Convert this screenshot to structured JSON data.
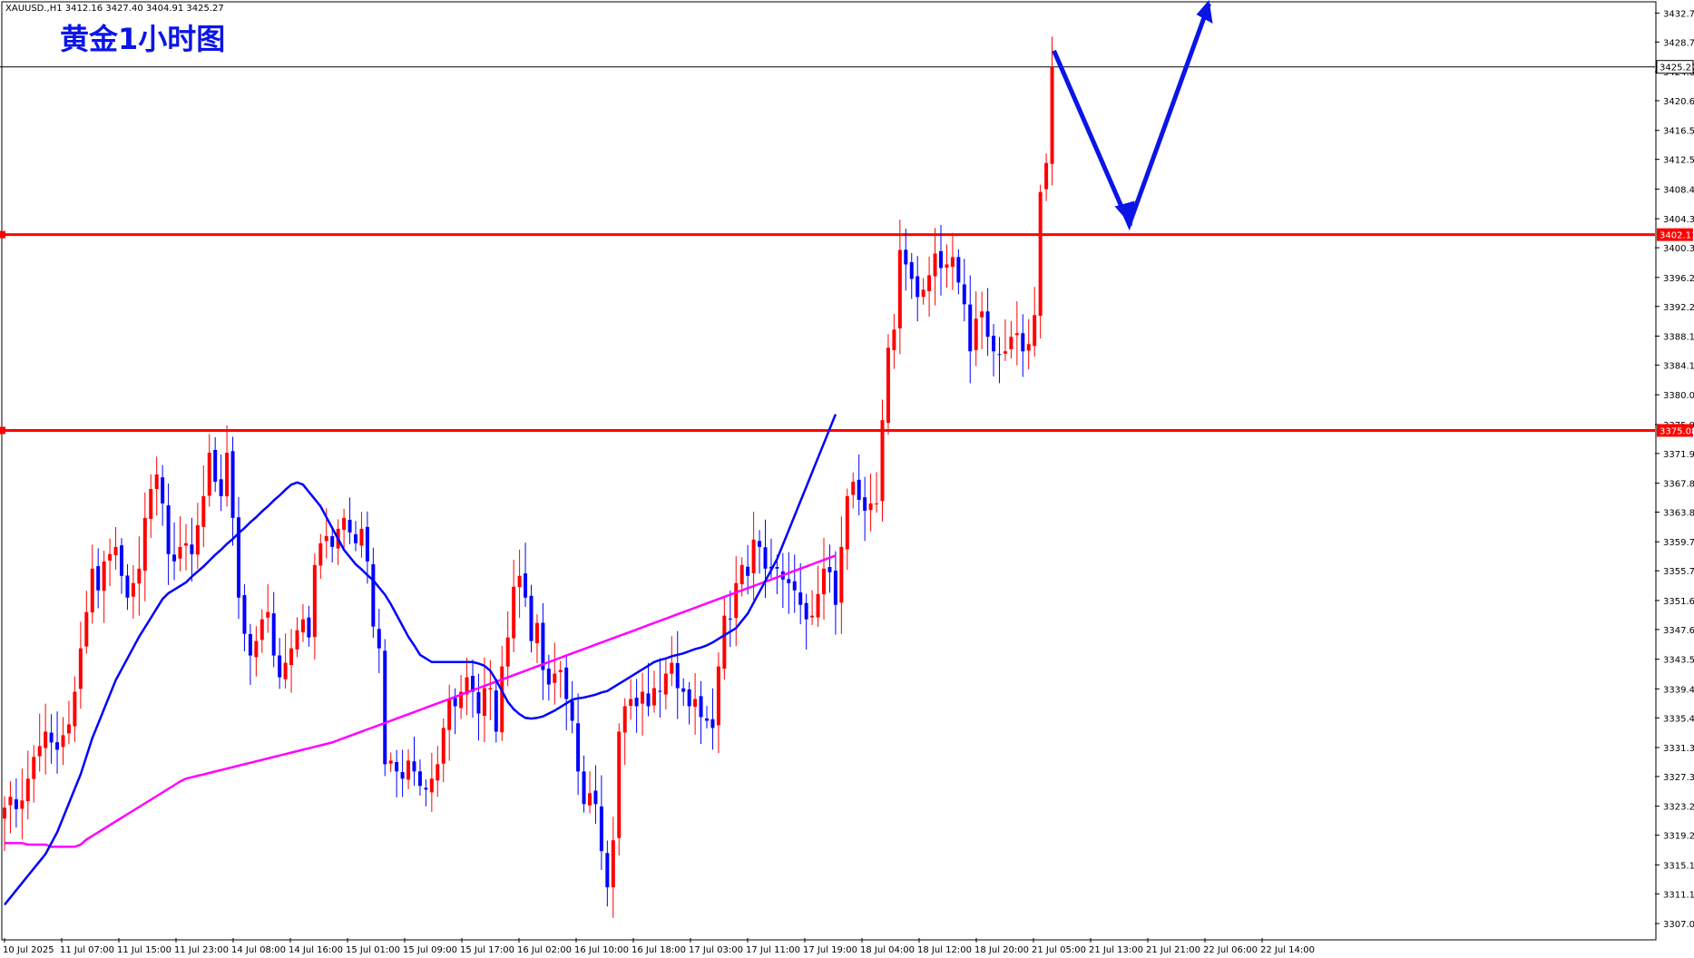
{
  "chart_data": {
    "type": "candlestick",
    "title": "黄金1小时图",
    "info": "XAUUSD.,H1  3412.16 3427.40 3404.91 3425.27",
    "ylim": [
      3305,
      3434
    ],
    "y_ticks": [
      "3432.70",
      "3428.70",
      "3424.60",
      "3420.60",
      "3416.50",
      "3412.50",
      "3408.40",
      "3404.30",
      "3400.30",
      "3396.20",
      "3392.20",
      "3388.10",
      "3384.10",
      "3380.00",
      "3375.90",
      "3371.90",
      "3367.80",
      "3363.80",
      "3359.70",
      "3355.70",
      "3351.60",
      "3347.60",
      "3343.50",
      "3339.40",
      "3335.40",
      "3331.30",
      "3327.30",
      "3323.20",
      "3319.20",
      "3315.10",
      "3311.10",
      "3307.00"
    ],
    "x_labels": [
      "10 Jul 2025",
      "11 Jul 07:00",
      "11 Jul 15:00",
      "11 Jul 23:00",
      "14 Jul 08:00",
      "14 Jul 16:00",
      "15 Jul 01:00",
      "15 Jul 09:00",
      "15 Jul 17:00",
      "16 Jul 02:00",
      "16 Jul 10:00",
      "16 Jul 18:00",
      "17 Jul 03:00",
      "17 Jul 11:00",
      "17 Jul 19:00",
      "18 Jul 04:00",
      "18 Jul 12:00",
      "18 Jul 20:00",
      "21 Jul 05:00",
      "21 Jul 13:00",
      "21 Jul 21:00",
      "22 Jul 06:00",
      "22 Jul 14:00"
    ],
    "current_price": "3425.27",
    "levels": [
      {
        "value": 3402.11,
        "label": "3402.11",
        "color": "#ff0000"
      },
      {
        "value": 3375.08,
        "label": "3375.08",
        "color": "#ff0000"
      }
    ],
    "close": [
      3323.0,
      3324.5,
      3322.8,
      3324.0,
      3327.0,
      3330.0,
      3331.5,
      3333.5,
      3332.0,
      3331.0,
      3333.0,
      3334.5,
      3339.0,
      3345.0,
      3350.0,
      3356.0,
      3353.0,
      3357.0,
      3358.0,
      3359.0,
      3355.0,
      3352.0,
      3354.0,
      3356.0,
      3363.0,
      3367.0,
      3369.0,
      3365.0,
      3358.0,
      3357.0,
      3359.0,
      3359.5,
      3358.0,
      3362.0,
      3366.0,
      3372.0,
      3368.0,
      3366.0,
      3372.0,
      3363.0,
      3352.0,
      3347.0,
      3344.0,
      3346.0,
      3349.0,
      3350.0,
      3344.0,
      3341.0,
      3343.0,
      3345.0,
      3347.5,
      3349.0,
      3346.5,
      3356.5,
      3359.5,
      3360.5,
      3359.0,
      3361.5,
      3363.0,
      3361.0,
      3359.5,
      3361.5,
      3357.0,
      3348.0,
      3345.0,
      3329.0,
      3329.5,
      3328.0,
      3327.0,
      3329.5,
      3328.0,
      3326.0,
      3325.5,
      3327.0,
      3329.0,
      3334.0,
      3338.0,
      3337.0,
      3339.0,
      3341.0,
      3339.0,
      3336.0,
      3339.5,
      3339.5,
      3333.5,
      3342.5,
      3346.5,
      3353.5,
      3355.0,
      3352.0,
      3346.0,
      3348.5,
      3342.0,
      3340.0,
      3341.5,
      3342.0,
      3338.0,
      3335.0,
      3328.0,
      3323.5,
      3325.0,
      3323.5,
      3317.0,
      3312.0,
      3318.5,
      3333.5,
      3337.0,
      3338.0,
      3337.0,
      3339.0,
      3337.0,
      3339.5,
      3339.0,
      3341.5,
      3343.0,
      3339.5,
      3339.0,
      3337.0,
      3338.0,
      3335.5,
      3335.0,
      3334.0,
      3342.5,
      3349.5,
      3349.0,
      3354.0,
      3356.5,
      3355.0,
      3360.0,
      3359.0,
      3356.0,
      3356.0,
      3356.0,
      3354.5,
      3354.0,
      3353.0,
      3351.0,
      3349.0,
      3349.5,
      3352.5,
      3356.0,
      3355.5,
      3351.0,
      3359.0,
      3366.0,
      3368.0,
      3365.5,
      3364.0,
      3365.0,
      3365.0,
      3376.5,
      3386.5,
      3389.0,
      3400.0,
      3398.0,
      3396.0,
      3393.5,
      3394.5,
      3396.5,
      3399.5,
      3397.5,
      3398.0,
      3399.0,
      3395.5,
      3392.5,
      3386.0,
      3390.5,
      3391.5,
      3388.0,
      3386.0,
      3385.5,
      3386.0,
      3388.0,
      3388.5,
      3386.0,
      3387.0,
      3391.0,
      3408.0,
      3412.0,
      3425.27
    ],
    "ma_blue": [
      3309.6,
      3310.6,
      3311.6,
      3312.6,
      3313.6,
      3314.6,
      3315.6,
      3316.6,
      3318.1,
      3319.6,
      3321.6,
      3323.6,
      3325.6,
      3327.6,
      3330.1,
      3332.6,
      3334.6,
      3336.6,
      3338.6,
      3340.6,
      3342.1,
      3343.6,
      3345.1,
      3346.6,
      3347.9,
      3349.2,
      3350.5,
      3351.8,
      3352.6,
      3353.1,
      3353.6,
      3354.1,
      3354.9,
      3355.6,
      3356.3,
      3357.1,
      3357.9,
      3358.6,
      3359.4,
      3360.1,
      3360.9,
      3361.6,
      3362.4,
      3363.1,
      3363.9,
      3364.6,
      3365.4,
      3366.1,
      3366.9,
      3367.6,
      3367.9,
      3367.6,
      3366.6,
      3365.6,
      3364.6,
      3363.1,
      3361.6,
      3360.1,
      3358.6,
      3357.6,
      3356.6,
      3355.9,
      3355.1,
      3354.4,
      3353.4,
      3352.4,
      3351.1,
      3349.6,
      3348.1,
      3346.6,
      3345.4,
      3344.1,
      3343.6,
      3343.1,
      3343.1,
      3343.1,
      3343.1,
      3343.1,
      3343.1,
      3343.1,
      3343.1,
      3342.9,
      3342.6,
      3341.9,
      3340.6,
      3339.1,
      3337.6,
      3336.6,
      3335.9,
      3335.4,
      3335.3,
      3335.4,
      3335.6,
      3336.0,
      3336.4,
      3336.9,
      3337.4,
      3337.9,
      3338.1,
      3338.2,
      3338.4,
      3338.6,
      3338.9,
      3339.1,
      3339.6,
      3340.1,
      3340.6,
      3341.1,
      3341.6,
      3342.1,
      3342.6,
      3343.1,
      3343.4,
      3343.6,
      3343.9,
      3344.1,
      3344.3,
      3344.6,
      3344.9,
      3345.1,
      3345.4,
      3345.8,
      3346.3,
      3346.8,
      3347.3,
      3347.8,
      3348.8,
      3349.8,
      3351.3,
      3352.8,
      3354.3,
      3355.8,
      3357.3,
      3359.3,
      3361.3,
      3363.3,
      3365.3,
      3367.3,
      3369.3,
      3371.3,
      3373.3,
      3375.3,
      3377.3
    ],
    "ma_magenta": [
      3318.1,
      3318.1,
      3318.1,
      3318.1,
      3317.9,
      3317.9,
      3317.9,
      3317.9,
      3317.6,
      3317.6,
      3317.6,
      3317.6,
      3317.6,
      3317.9,
      3318.6,
      3319.1,
      3319.6,
      3320.1,
      3320.6,
      3321.1,
      3321.6,
      3322.1,
      3322.6,
      3323.1,
      3323.6,
      3324.1,
      3324.6,
      3325.1,
      3325.6,
      3326.1,
      3326.6,
      3327.0,
      3327.2,
      3327.4,
      3327.6,
      3327.8,
      3328.0,
      3328.2,
      3328.4,
      3328.6,
      3328.8,
      3329.0,
      3329.2,
      3329.4,
      3329.6,
      3329.8,
      3330.0,
      3330.2,
      3330.4,
      3330.6,
      3330.8,
      3331.0,
      3331.2,
      3331.4,
      3331.6,
      3331.8,
      3332.0,
      3332.3,
      3332.6,
      3332.9,
      3333.2,
      3333.5,
      3333.8,
      3334.1,
      3334.4,
      3334.7,
      3335.0,
      3335.3,
      3335.6,
      3335.9,
      3336.2,
      3336.5,
      3336.8,
      3337.1,
      3337.4,
      3337.7,
      3338.0,
      3338.3,
      3338.6,
      3338.9,
      3339.2,
      3339.5,
      3339.8,
      3340.1,
      3340.4,
      3340.7,
      3341.0,
      3341.3,
      3341.6,
      3341.9,
      3342.2,
      3342.5,
      3342.8,
      3343.1,
      3343.4,
      3343.7,
      3344.0,
      3344.3,
      3344.6,
      3344.9,
      3345.2,
      3345.5,
      3345.8,
      3346.1,
      3346.4,
      3346.7,
      3347.0,
      3347.3,
      3347.6,
      3347.9,
      3348.2,
      3348.5,
      3348.8,
      3349.1,
      3349.4,
      3349.7,
      3350.0,
      3350.3,
      3350.6,
      3350.9,
      3351.2,
      3351.5,
      3351.8,
      3352.1,
      3352.4,
      3352.7,
      3353.0,
      3353.3,
      3353.6,
      3353.9,
      3354.2,
      3354.5,
      3354.8,
      3355.1,
      3355.4,
      3355.7,
      3356.0,
      3356.3,
      3356.6,
      3356.9,
      3357.2,
      3357.5,
      3357.8
    ]
  }
}
